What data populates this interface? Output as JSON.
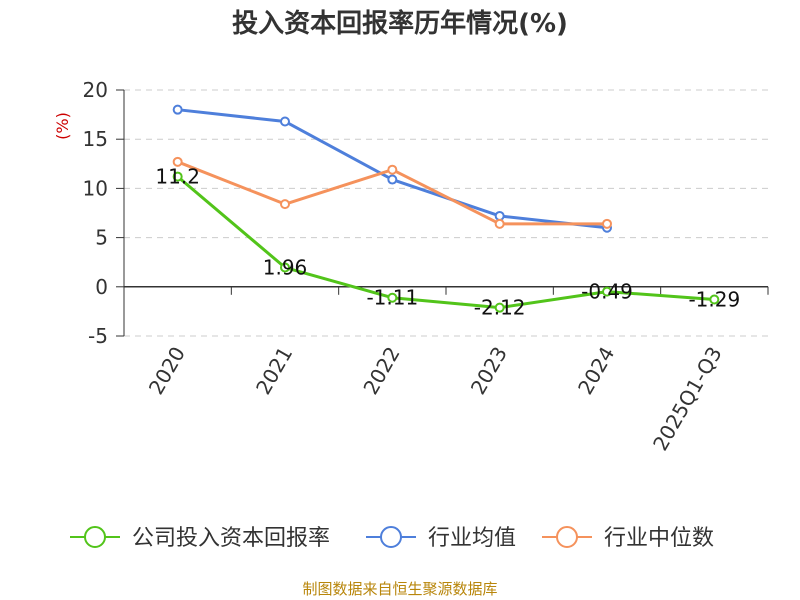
{
  "chart_data": {
    "type": "line",
    "title": "投入资本回报率历年情况(%)",
    "ylabel": "(%)",
    "xlabel": "",
    "categories": [
      "2020",
      "2021",
      "2022",
      "2023",
      "2024",
      "2025Q1-Q3"
    ],
    "ylim": [
      -5,
      20
    ],
    "yticks": [
      -5,
      0,
      5,
      10,
      15,
      20
    ],
    "grid": true,
    "legend_position": "bottom",
    "series": [
      {
        "name": "公司投入资本回报率",
        "color": "#52c41a",
        "values": [
          11.2,
          1.96,
          -1.11,
          -2.12,
          -0.49,
          -1.29
        ],
        "labels": [
          "11.2",
          "1.96",
          "-1.11",
          "-2.12",
          "-0.49",
          "-1.29"
        ]
      },
      {
        "name": "行业均值",
        "color": "#4e7fdb",
        "values": [
          18.0,
          16.8,
          10.9,
          7.2,
          6.0,
          null
        ]
      },
      {
        "name": "行业中位数",
        "color": "#f5925c",
        "values": [
          12.7,
          8.4,
          11.9,
          6.4,
          6.4,
          null
        ]
      }
    ],
    "source": "制图数据来自恒生聚源数据库"
  }
}
